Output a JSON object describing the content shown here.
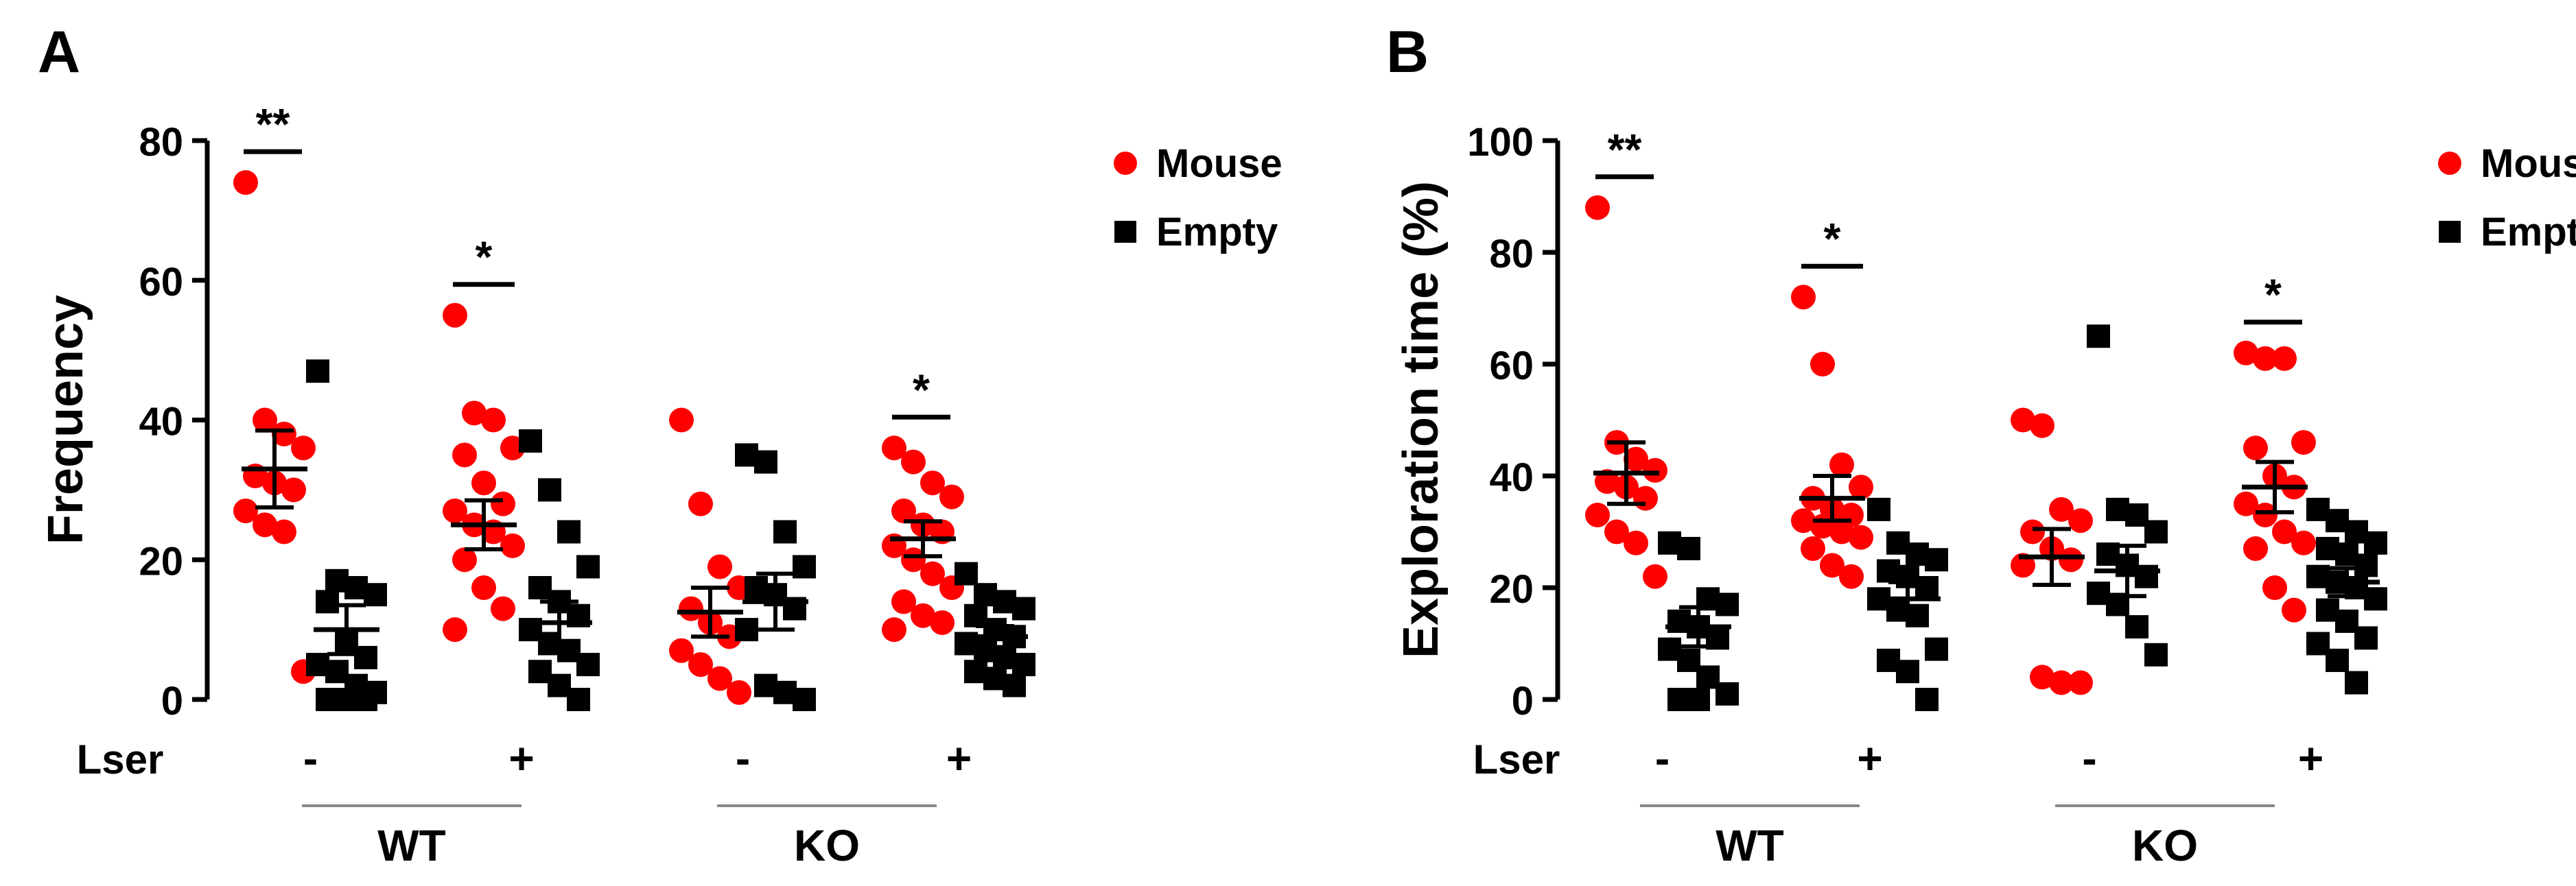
{
  "colors": {
    "mouse": "#ff0000",
    "empty": "#000000",
    "axis": "#000000",
    "group_line": "#888888"
  },
  "chart_data": [
    {
      "type": "scatter",
      "panel_label": "A",
      "ylabel": "Frequency",
      "ylim": [
        0,
        80
      ],
      "yticks": [
        0,
        20,
        40,
        60,
        80
      ],
      "legend": {
        "position": "top-right",
        "entries": [
          {
            "name": "Mouse",
            "marker": "circle"
          },
          {
            "name": "Empty",
            "marker": "square"
          }
        ]
      },
      "factor_label": "Lser",
      "groups": [
        {
          "name": "WT",
          "conditions": [
            "-",
            "+"
          ]
        },
        {
          "name": "KO",
          "conditions": [
            "-",
            "+"
          ]
        }
      ],
      "series": [
        {
          "name": "Mouse",
          "condition": "WT -",
          "values": [
            74,
            40,
            38,
            36,
            32,
            31,
            30,
            27,
            25,
            24,
            4
          ],
          "mean": 33,
          "sem": 5.5
        },
        {
          "name": "Empty",
          "condition": "WT -",
          "values": [
            47,
            17,
            16,
            15,
            14,
            8,
            6,
            5,
            4,
            2,
            1,
            0,
            0,
            0
          ],
          "mean": 10,
          "sem": 3.5
        },
        {
          "name": "Mouse",
          "condition": "WT +",
          "values": [
            55,
            41,
            40,
            36,
            35,
            31,
            28,
            27,
            25,
            24,
            22,
            20,
            16,
            13,
            10
          ],
          "mean": 25,
          "sem": 3.5
        },
        {
          "name": "Empty",
          "condition": "WT +",
          "values": [
            37,
            30,
            24,
            19,
            16,
            14,
            12,
            10,
            8,
            7,
            5,
            4,
            2,
            0
          ],
          "mean": 11,
          "sem": 3
        },
        {
          "name": "Mouse",
          "condition": "KO -",
          "values": [
            40,
            28,
            19,
            16,
            13,
            11,
            9,
            7,
            5,
            3,
            1
          ],
          "mean": 12.5,
          "sem": 3.5
        },
        {
          "name": "Empty",
          "condition": "KO -",
          "values": [
            35,
            34,
            24,
            19,
            16,
            15,
            13,
            10,
            2,
            1,
            0
          ],
          "mean": 14,
          "sem": 4
        },
        {
          "name": "Mouse",
          "condition": "KO +",
          "values": [
            36,
            34,
            31,
            29,
            27,
            25,
            24,
            22,
            20,
            18,
            16,
            14,
            12,
            11,
            10
          ],
          "mean": 23,
          "sem": 2.5
        },
        {
          "name": "Empty",
          "condition": "KO +",
          "values": [
            18,
            15,
            14,
            13,
            12,
            10,
            9,
            8,
            7,
            6,
            5,
            4,
            3,
            2
          ],
          "mean": 9,
          "sem": 1.5
        }
      ],
      "significance": [
        {
          "group": "WT",
          "condition": "-",
          "label": "**"
        },
        {
          "group": "WT",
          "condition": "+",
          "label": "*"
        },
        {
          "group": "KO",
          "condition": "+",
          "label": "*"
        }
      ]
    },
    {
      "type": "scatter",
      "panel_label": "B",
      "ylabel": "Exploration time (%)",
      "ylim": [
        0,
        100
      ],
      "yticks": [
        0,
        20,
        40,
        60,
        80,
        100
      ],
      "legend": {
        "position": "top-right",
        "entries": [
          {
            "name": "Mouse",
            "marker": "circle"
          },
          {
            "name": "Empty",
            "marker": "square"
          }
        ]
      },
      "factor_label": "Lser",
      "groups": [
        {
          "name": "WT",
          "conditions": [
            "-",
            "+"
          ]
        },
        {
          "name": "KO",
          "conditions": [
            "-",
            "+"
          ]
        }
      ],
      "series": [
        {
          "name": "Mouse",
          "condition": "WT -",
          "values": [
            88,
            46,
            43,
            41,
            39,
            38,
            36,
            33,
            30,
            28,
            22
          ],
          "mean": 40.5,
          "sem": 5.5
        },
        {
          "name": "Empty",
          "condition": "WT -",
          "values": [
            28,
            27,
            18,
            17,
            14,
            13,
            11,
            9,
            7,
            4,
            1,
            0,
            0
          ],
          "mean": 13,
          "sem": 3.5
        },
        {
          "name": "Mouse",
          "condition": "WT +",
          "values": [
            72,
            60,
            42,
            38,
            36,
            34,
            33,
            32,
            31,
            30,
            29,
            27,
            24,
            22
          ],
          "mean": 36,
          "sem": 4
        },
        {
          "name": "Empty",
          "condition": "WT +",
          "values": [
            34,
            28,
            26,
            25,
            23,
            22,
            20,
            18,
            16,
            15,
            9,
            7,
            5,
            0
          ],
          "mean": 18,
          "sem": 3
        },
        {
          "name": "Mouse",
          "condition": "KO -",
          "values": [
            50,
            49,
            34,
            32,
            30,
            27,
            25,
            24,
            4,
            3,
            3
          ],
          "mean": 25.5,
          "sem": 5
        },
        {
          "name": "Empty",
          "condition": "KO -",
          "values": [
            65,
            34,
            33,
            30,
            26,
            24,
            22,
            19,
            17,
            13,
            8
          ],
          "mean": 23,
          "sem": 4.5
        },
        {
          "name": "Mouse",
          "condition": "KO +",
          "values": [
            62,
            61,
            61,
            46,
            45,
            40,
            38,
            35,
            33,
            30,
            28,
            27,
            20,
            16
          ],
          "mean": 38,
          "sem": 4.5
        },
        {
          "name": "Empty",
          "condition": "KO +",
          "values": [
            34,
            32,
            30,
            28,
            27,
            26,
            24,
            22,
            21,
            20,
            18,
            16,
            14,
            11,
            10,
            7,
            3
          ],
          "mean": 21,
          "sem": 2.5
        }
      ],
      "significance": [
        {
          "group": "WT",
          "condition": "-",
          "label": "**"
        },
        {
          "group": "WT",
          "condition": "+",
          "label": "*"
        },
        {
          "group": "KO",
          "condition": "+",
          "label": "*"
        }
      ]
    }
  ]
}
